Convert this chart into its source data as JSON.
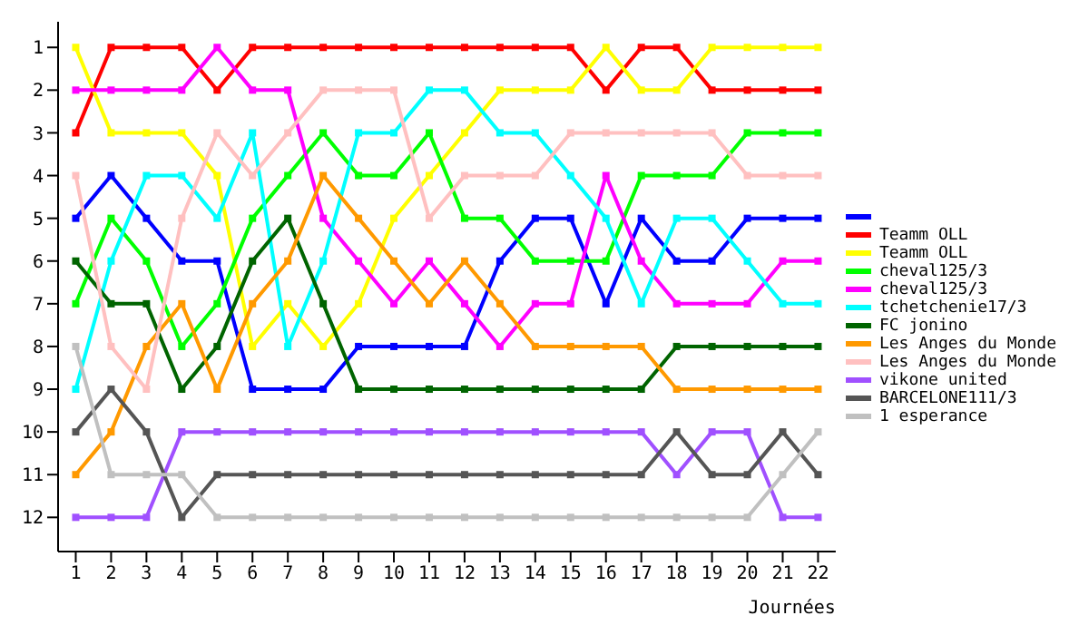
{
  "chart_data": {
    "type": "line",
    "xlabel": "Journées",
    "x": [
      1,
      2,
      3,
      4,
      5,
      6,
      7,
      8,
      9,
      10,
      11,
      12,
      13,
      14,
      15,
      16,
      17,
      18,
      19,
      20,
      21,
      22
    ],
    "xlim": [
      0.5,
      22.5
    ],
    "xticks": [
      1,
      2,
      3,
      4,
      5,
      6,
      7,
      8,
      9,
      10,
      11,
      12,
      13,
      14,
      15,
      16,
      17,
      18,
      19,
      20,
      21,
      22
    ],
    "ylim": [
      12.8,
      0.4
    ],
    "yticks": [
      1,
      2,
      3,
      4,
      5,
      6,
      7,
      8,
      9,
      10,
      11,
      12
    ],
    "grid": false,
    "legend": "right",
    "marker": "square",
    "line_style": "solid",
    "series": [
      {
        "color": "#0000ff",
        "values": [
          5,
          4,
          5,
          6,
          6,
          9,
          9,
          9,
          8,
          8,
          8,
          8,
          6,
          5,
          5,
          7,
          5,
          6,
          6,
          5,
          5,
          5
        ]
      },
      {
        "name": "Teamm OLL",
        "color": "#ff0000",
        "values": [
          3,
          1,
          1,
          1,
          2,
          1,
          1,
          1,
          1,
          1,
          1,
          1,
          1,
          1,
          1,
          2,
          1,
          1,
          2,
          2,
          2,
          2
        ]
      },
      {
        "name": "Teamm OLL",
        "color": "#ffff00",
        "values": [
          1,
          3,
          3,
          3,
          4,
          8,
          7,
          8,
          7,
          5,
          4,
          3,
          2,
          2,
          2,
          1,
          2,
          2,
          1,
          1,
          1,
          1
        ]
      },
      {
        "name": "cheval125/3",
        "color": "#00ff00",
        "values": [
          7,
          5,
          6,
          8,
          7,
          5,
          4,
          3,
          4,
          4,
          3,
          5,
          5,
          6,
          6,
          6,
          4,
          4,
          4,
          3,
          3,
          3
        ]
      },
      {
        "name": "cheval125/3",
        "color": "#ff00ff",
        "values": [
          2,
          2,
          2,
          2,
          1,
          2,
          2,
          5,
          6,
          7,
          6,
          7,
          8,
          7,
          7,
          4,
          6,
          7,
          7,
          7,
          6,
          6
        ]
      },
      {
        "name": "tchetchenie17/3",
        "color": "#00ffff",
        "values": [
          9,
          6,
          4,
          4,
          5,
          3,
          8,
          6,
          3,
          3,
          2,
          2,
          3,
          3,
          4,
          5,
          7,
          5,
          5,
          6,
          7,
          7
        ]
      },
      {
        "name": "FC jonino",
        "color": "#006400",
        "values": [
          6,
          7,
          7,
          9,
          8,
          6,
          5,
          7,
          9,
          9,
          9,
          9,
          9,
          9,
          9,
          9,
          9,
          8,
          8,
          8,
          8,
          8
        ]
      },
      {
        "name": "Les Anges du Monde",
        "color": "#ff9900",
        "values": [
          11,
          10,
          8,
          7,
          9,
          7,
          6,
          4,
          5,
          6,
          7,
          6,
          7,
          8,
          8,
          8,
          8,
          9,
          9,
          9,
          9,
          9
        ]
      },
      {
        "name": "Les Anges du Monde",
        "color": "#ffc0c0",
        "values": [
          4,
          8,
          9,
          5,
          3,
          4,
          3,
          2,
          2,
          2,
          5,
          4,
          4,
          4,
          3,
          3,
          3,
          3,
          3,
          4,
          4,
          4
        ]
      },
      {
        "name": "vikone united",
        "color": "#a050ff",
        "values": [
          12,
          12,
          12,
          10,
          10,
          10,
          10,
          10,
          10,
          10,
          10,
          10,
          10,
          10,
          10,
          10,
          10,
          11,
          10,
          10,
          12,
          12
        ]
      },
      {
        "name": "BARCELONE111/3",
        "color": "#555555",
        "values": [
          10,
          9,
          10,
          12,
          11,
          11,
          11,
          11,
          11,
          11,
          11,
          11,
          11,
          11,
          11,
          11,
          11,
          10,
          11,
          11,
          10,
          11
        ]
      },
      {
        "name": "1 esperance",
        "color": "#c0c0c0",
        "values": [
          8,
          11,
          11,
          11,
          12,
          12,
          12,
          12,
          12,
          12,
          12,
          12,
          12,
          12,
          12,
          12,
          12,
          12,
          12,
          12,
          11,
          10
        ]
      }
    ]
  }
}
